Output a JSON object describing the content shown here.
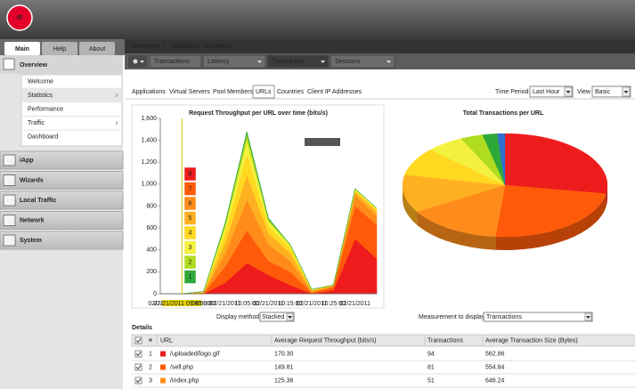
{
  "header": {
    "logo": "f5"
  },
  "tabs": [
    "Main",
    "Help",
    "About"
  ],
  "sidebar": {
    "overview": "Overview",
    "items": [
      "Welcome",
      "Statistics",
      "Performance",
      "Traffic",
      "Dashboard"
    ],
    "sections": [
      "iApp",
      "Wizards",
      "Local Traffic",
      "Network",
      "System"
    ]
  },
  "breadcrumb": {
    "root": "Overview",
    "separator": "»",
    "current": "Statistics : Analytics"
  },
  "menu": [
    "Transactions",
    "Latency",
    "Throughput",
    "Sessions"
  ],
  "subtabs": [
    "Applications",
    "Virtual Servers",
    "Pool Members",
    "URLs",
    "Countries",
    "Client IP Addresses"
  ],
  "filters": {
    "time_period_label": "Time Period",
    "time_period": "Last Hour",
    "view_label": "View",
    "view": "Basic"
  },
  "chart_data": [
    {
      "type": "area",
      "stacked": true,
      "title": "Request Throughput per URL over time (bits/s)",
      "categories": [
        "02/21/20",
        "02/21/2011 09:45:00",
        "09:50:00",
        "02/21/2011",
        "10:05:00",
        "02/21/2011",
        "10:15:00",
        "02/21/2011",
        "10:25:00",
        "02/21/2011",
        null
      ],
      "series": [
        {
          "name": "8",
          "color": "#ee1c1c",
          "values": [
            0,
            0,
            0,
            100,
            280,
            170,
            80,
            0,
            30,
            500,
            320
          ]
        },
        {
          "name": "7",
          "color": "#ff5a0a",
          "values": [
            0,
            0,
            5,
            150,
            300,
            130,
            120,
            10,
            30,
            300,
            310
          ]
        },
        {
          "name": "6",
          "color": "#ff8c1a",
          "values": [
            0,
            0,
            5,
            120,
            280,
            150,
            100,
            10,
            10,
            100,
            80
          ]
        },
        {
          "name": "5",
          "color": "#ffb020",
          "values": [
            0,
            0,
            5,
            100,
            220,
            100,
            70,
            10,
            5,
            30,
            40
          ]
        },
        {
          "name": "4",
          "color": "#ffd820",
          "values": [
            0,
            0,
            5,
            90,
            200,
            70,
            50,
            5,
            5,
            15,
            20
          ]
        },
        {
          "name": "3",
          "color": "#f4f040",
          "values": [
            0,
            0,
            0,
            50,
            120,
            40,
            20,
            5,
            0,
            10,
            10
          ]
        },
        {
          "name": "2",
          "color": "#b0dc20",
          "values": [
            0,
            0,
            0,
            30,
            60,
            20,
            10,
            0,
            0,
            5,
            0
          ]
        },
        {
          "name": "1",
          "color": "#2fa83a",
          "values": [
            0,
            0,
            0,
            10,
            20,
            10,
            0,
            0,
            0,
            0,
            0
          ]
        }
      ],
      "ylim": [
        0,
        1600
      ],
      "yticks": [
        0,
        200,
        400,
        600,
        800,
        {
          "value": 1000,
          "label": "1,000"
        },
        {
          "value": 1200,
          "label": "1,200"
        },
        {
          "value": 1400,
          "label": "1,400"
        },
        {
          "value": 1600,
          "label": "1,600"
        }
      ]
    },
    {
      "type": "pie",
      "title": "Total Transactions per URL",
      "values": [
        94,
        81,
        51,
        40,
        30,
        20,
        12,
        8,
        4
      ],
      "colors": [
        "#ee1c1c",
        "#ff5a0a",
        "#ff8c1a",
        "#ffb020",
        "#ffd820",
        "#f4f040",
        "#b0dc20",
        "#2fa83a",
        "#2f6fd0"
      ]
    }
  ],
  "controls": {
    "display_method_label": "Display method",
    "display_method": "Stacked",
    "measurement_label": "Measurement to display",
    "measurement": "Transactions"
  },
  "details": {
    "title": "Details",
    "table": {
      "columns": [
        "#",
        "URL",
        "Average Request Throughput (bits/s)",
        "Transactions",
        "Average Transaction Size (Bytes)"
      ],
      "rows": [
        [
          "1",
          "/uploaded/logo.gif",
          "170.30",
          "94",
          "562.86"
        ],
        [
          "2",
          "/sell.php",
          "149.81",
          "81",
          "554.84"
        ],
        [
          "3",
          "/index.php",
          "125.36",
          "51",
          "646.24"
        ]
      ]
    }
  }
}
